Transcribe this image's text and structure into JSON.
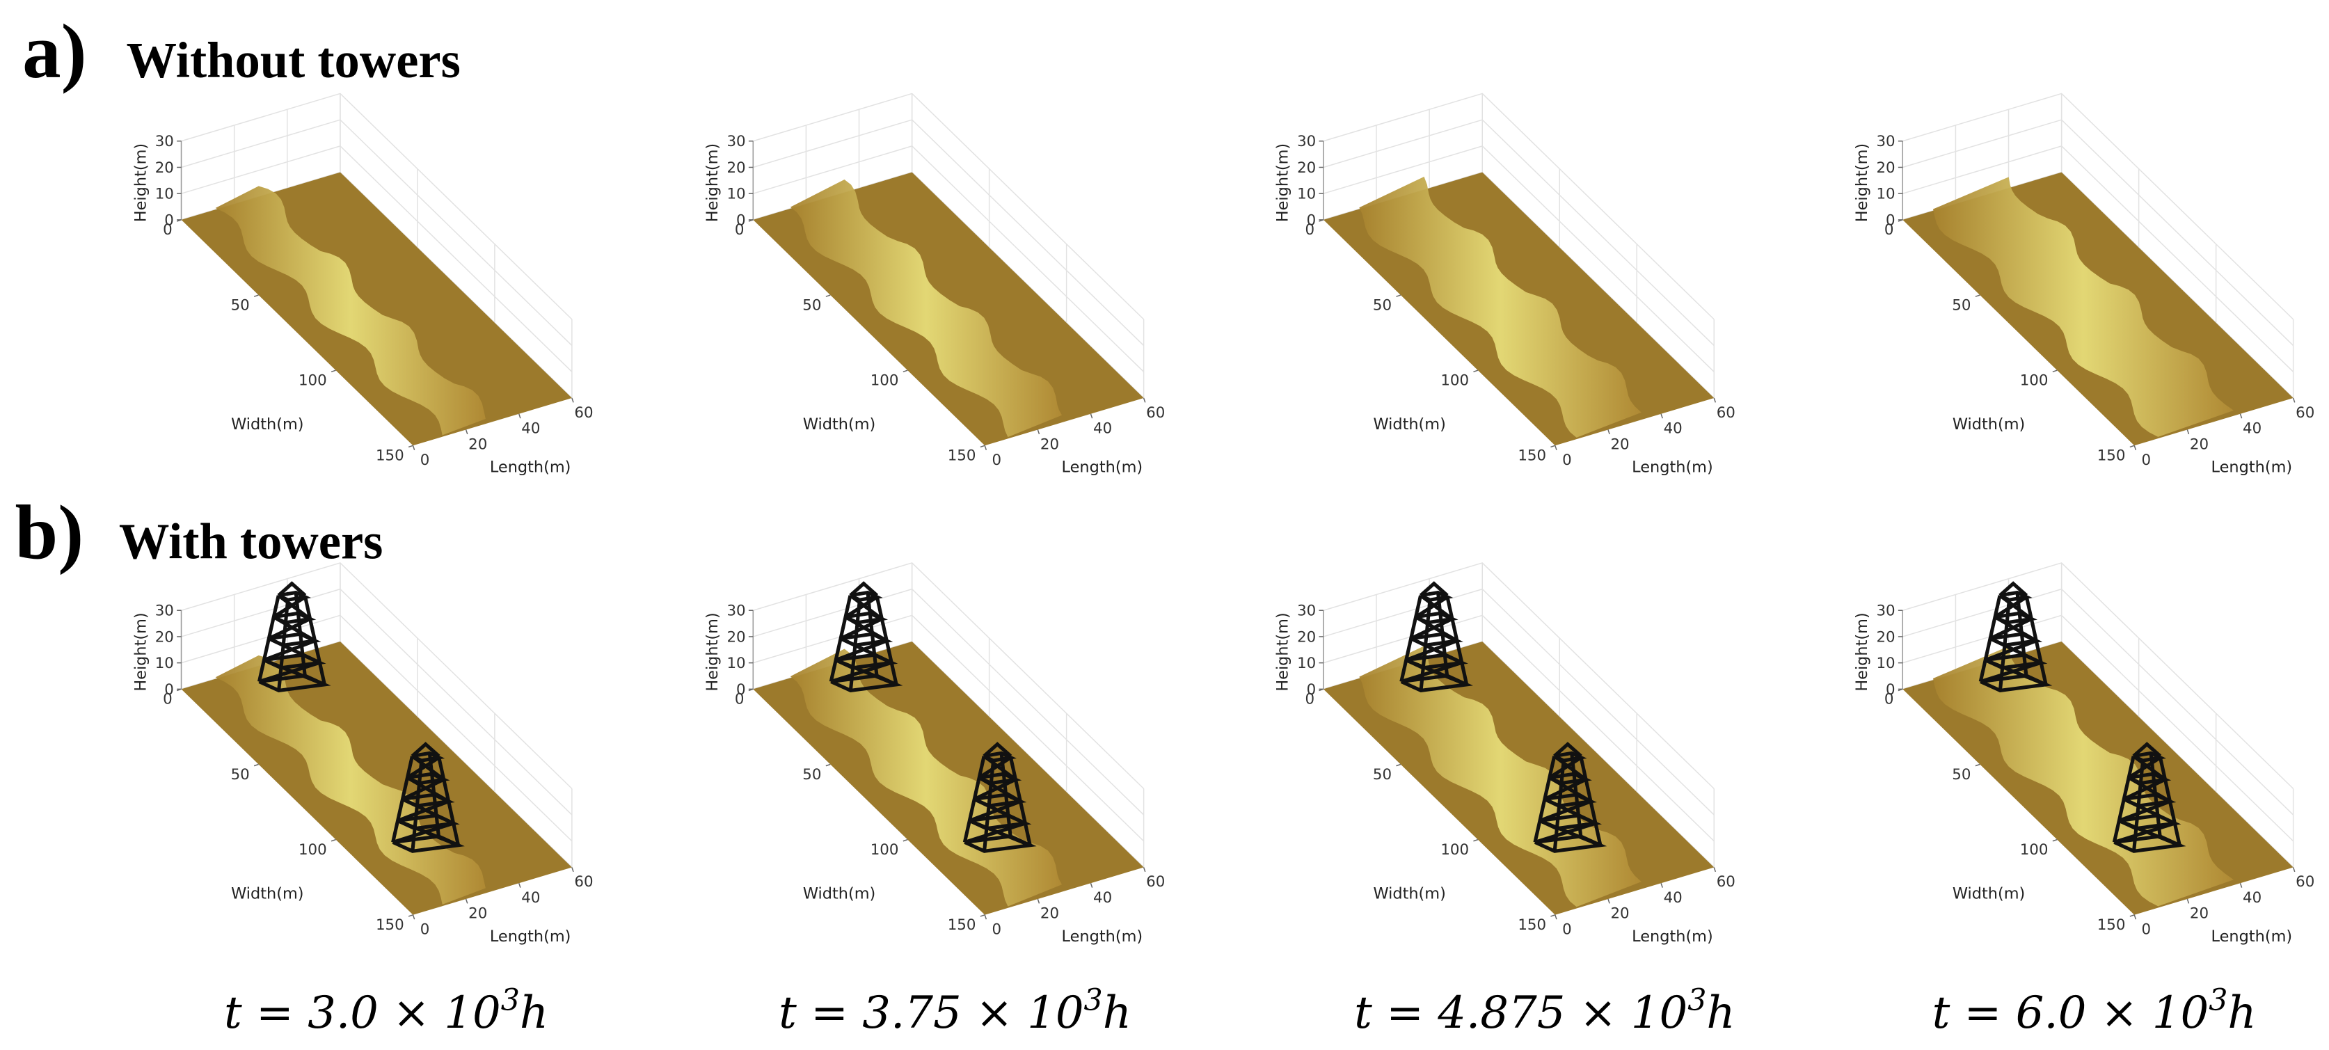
{
  "rows": [
    {
      "letter": "a)",
      "title": "Without towers",
      "towers": false
    },
    {
      "letter": "b)",
      "title": "With towers",
      "towers": true
    }
  ],
  "axes": {
    "height_label": "Height(m)",
    "width_label": "Width(m)",
    "length_label": "Length(m)",
    "height_lim": [
      0,
      30
    ],
    "height_ticks": [
      0,
      10,
      20,
      30
    ],
    "width_lim": [
      0,
      150
    ],
    "width_ticks": [
      0,
      50,
      100,
      150
    ],
    "length_lim": [
      0,
      60
    ],
    "length_ticks": [
      0,
      20,
      40,
      60
    ]
  },
  "captions": [
    {
      "text": "t = 3.0 × 10",
      "sup": "3",
      "unit": "h"
    },
    {
      "text": "t = 3.75 × 10",
      "sup": "3",
      "unit": "h"
    },
    {
      "text": "t = 4.875 × 10",
      "sup": "3",
      "unit": "h"
    },
    {
      "text": "t = 6.0 × 10",
      "sup": "3",
      "unit": "h"
    }
  ]
}
